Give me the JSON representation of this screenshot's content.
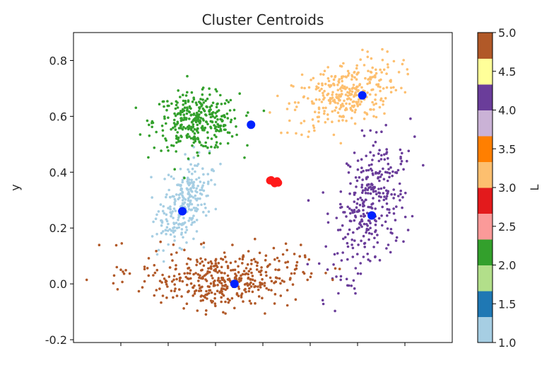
{
  "chart_data": {
    "type": "scatter",
    "title": "Cluster Centroids",
    "xlabel": "",
    "ylabel": "y",
    "xlim": [
      -0.5,
      1.1
    ],
    "ylim": [
      -0.21,
      0.9
    ],
    "x_ticks": [
      -0.3,
      -0.1,
      0.1,
      0.3,
      0.5,
      0.7,
      0.9
    ],
    "y_ticks": [
      -0.2,
      0.0,
      0.2,
      0.4,
      0.6,
      0.8
    ],
    "y_tick_labels": [
      "-0.2",
      "0.0",
      "0.2",
      "0.4",
      "0.6",
      "0.8"
    ],
    "grid": false,
    "colormap": "Paired",
    "colorbar": {
      "label": "L",
      "range": [
        1.0,
        5.0
      ],
      "ticks": [
        1.0,
        1.5,
        2.0,
        2.5,
        3.0,
        3.5,
        4.0,
        4.5,
        5.0
      ],
      "tick_labels": [
        "1.0",
        "1.5",
        "2.0",
        "2.5",
        "3.0",
        "3.5",
        "4.0",
        "4.5",
        "5.0"
      ],
      "colors": [
        "#a6cee3",
        "#1f78b4",
        "#b2df8a",
        "#33a02c",
        "#fb9a99",
        "#e31a1c",
        "#fdbf6f",
        "#ff7f00",
        "#cab2d6",
        "#6a3d9a",
        "#ffff99",
        "#b15928"
      ]
    },
    "series": [
      {
        "L": 1,
        "color": "#a6cee3",
        "center": [
          -0.03,
          0.29
        ],
        "spread": [
          0.05,
          0.08
        ],
        "count": 260
      },
      {
        "L": 2,
        "color": "#33a02c",
        "center": [
          0.02,
          0.58
        ],
        "spread": [
          0.09,
          0.05
        ],
        "count": 340
      },
      {
        "L": 3,
        "color": "#fdbf6f",
        "center": [
          0.65,
          0.68
        ],
        "spread": [
          0.11,
          0.06
        ],
        "count": 320
      },
      {
        "L": 4,
        "color": "#6a3d9a",
        "center": [
          0.75,
          0.28
        ],
        "spread": [
          0.07,
          0.12
        ],
        "count": 330
      },
      {
        "L": 5,
        "color": "#b15928",
        "center": [
          0.12,
          0.01
        ],
        "spread": [
          0.17,
          0.05
        ],
        "count": 420
      }
    ],
    "centroids": {
      "color": "#0022ff",
      "points": [
        {
          "x": -0.04,
          "y": 0.26
        },
        {
          "x": 0.25,
          "y": 0.57
        },
        {
          "x": 0.72,
          "y": 0.675
        },
        {
          "x": 0.76,
          "y": 0.245
        },
        {
          "x": 0.18,
          "y": 0.0
        }
      ]
    },
    "red_cluster": {
      "color": "#ff1a1a",
      "points": [
        {
          "x": 0.33,
          "y": 0.37
        },
        {
          "x": 0.345,
          "y": 0.365
        },
        {
          "x": 0.36,
          "y": 0.368
        },
        {
          "x": 0.335,
          "y": 0.372
        },
        {
          "x": 0.35,
          "y": 0.36
        },
        {
          "x": 0.365,
          "y": 0.362
        }
      ]
    }
  }
}
